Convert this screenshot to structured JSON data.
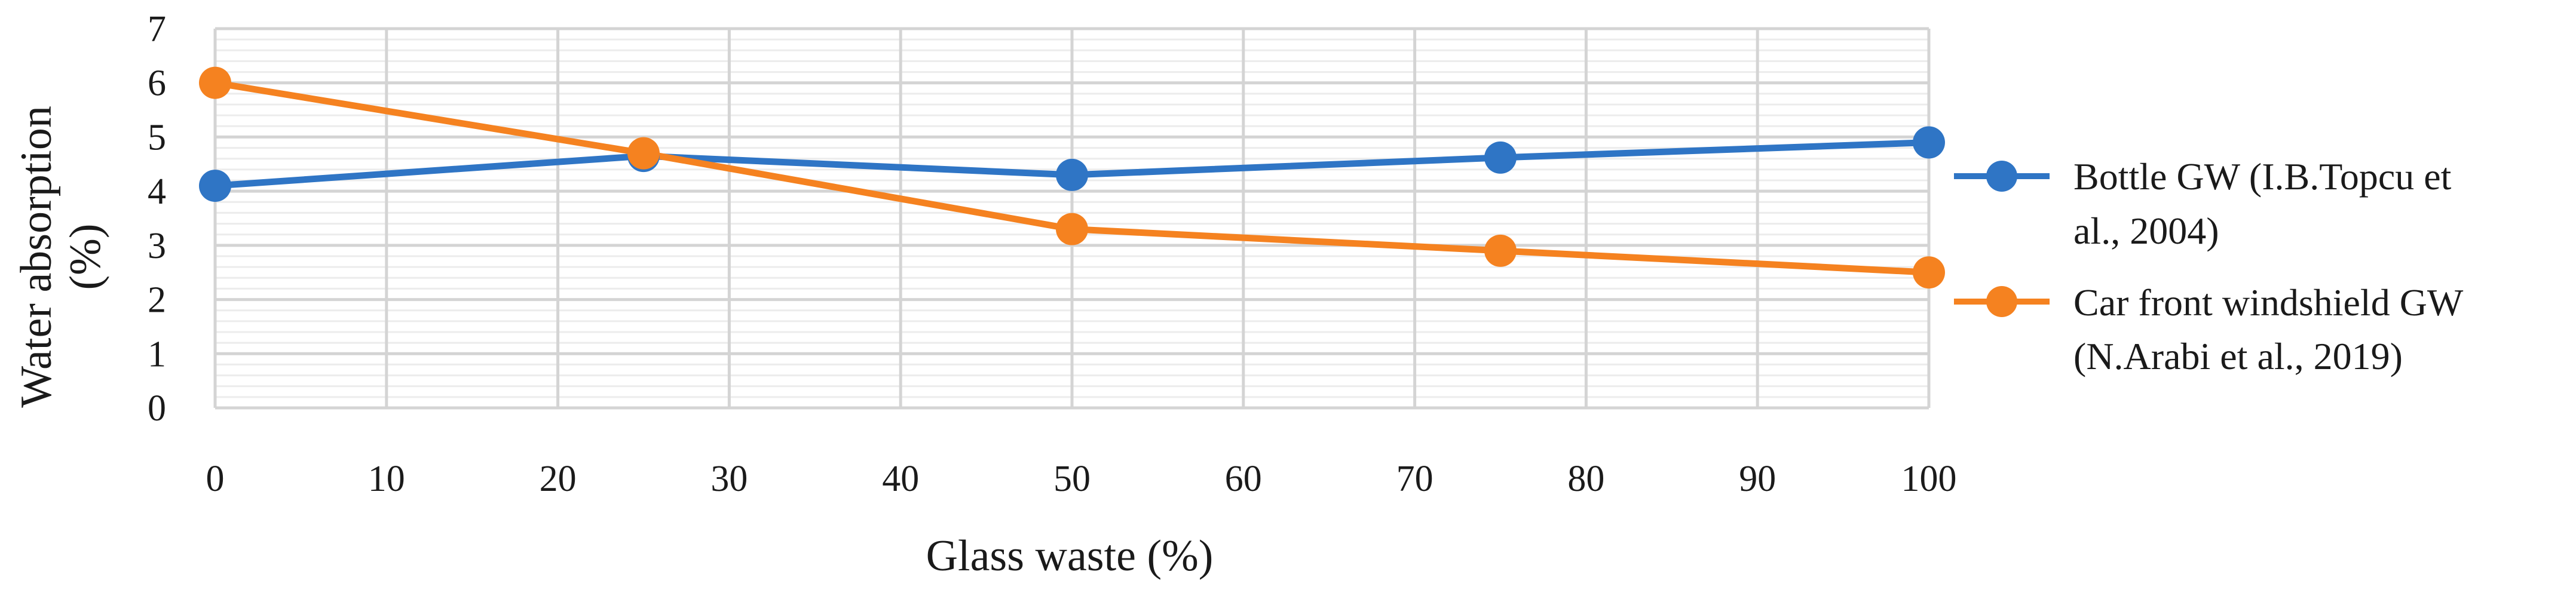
{
  "chart_data": {
    "type": "line",
    "xlabel": "Glass waste (%)",
    "ylabel_lines": [
      "Water absorption",
      "(%)"
    ],
    "x": [
      0,
      25,
      50,
      75,
      100
    ],
    "xticks": [
      "0",
      "10",
      "20",
      "30",
      "40",
      "50",
      "60",
      "70",
      "80",
      "90",
      "100"
    ],
    "yticks": [
      "0",
      "1",
      "2",
      "3",
      "4",
      "5",
      "6",
      "7"
    ],
    "xlim": [
      0,
      100
    ],
    "ylim": [
      0,
      7
    ],
    "grid": true,
    "legend_position": "right",
    "series": [
      {
        "name_lines": [
          "Bottle GW (I.B.Topcu et",
          "al., 2004)"
        ],
        "values": [
          4.1,
          4.65,
          4.3,
          4.62,
          4.9
        ],
        "color": "#2f75c5"
      },
      {
        "name_lines": [
          "Car front windshield GW",
          "(N.Arabi et al., 2019)"
        ],
        "values": [
          6.0,
          4.7,
          3.3,
          2.9,
          2.5
        ],
        "color": "#f58220"
      }
    ]
  }
}
